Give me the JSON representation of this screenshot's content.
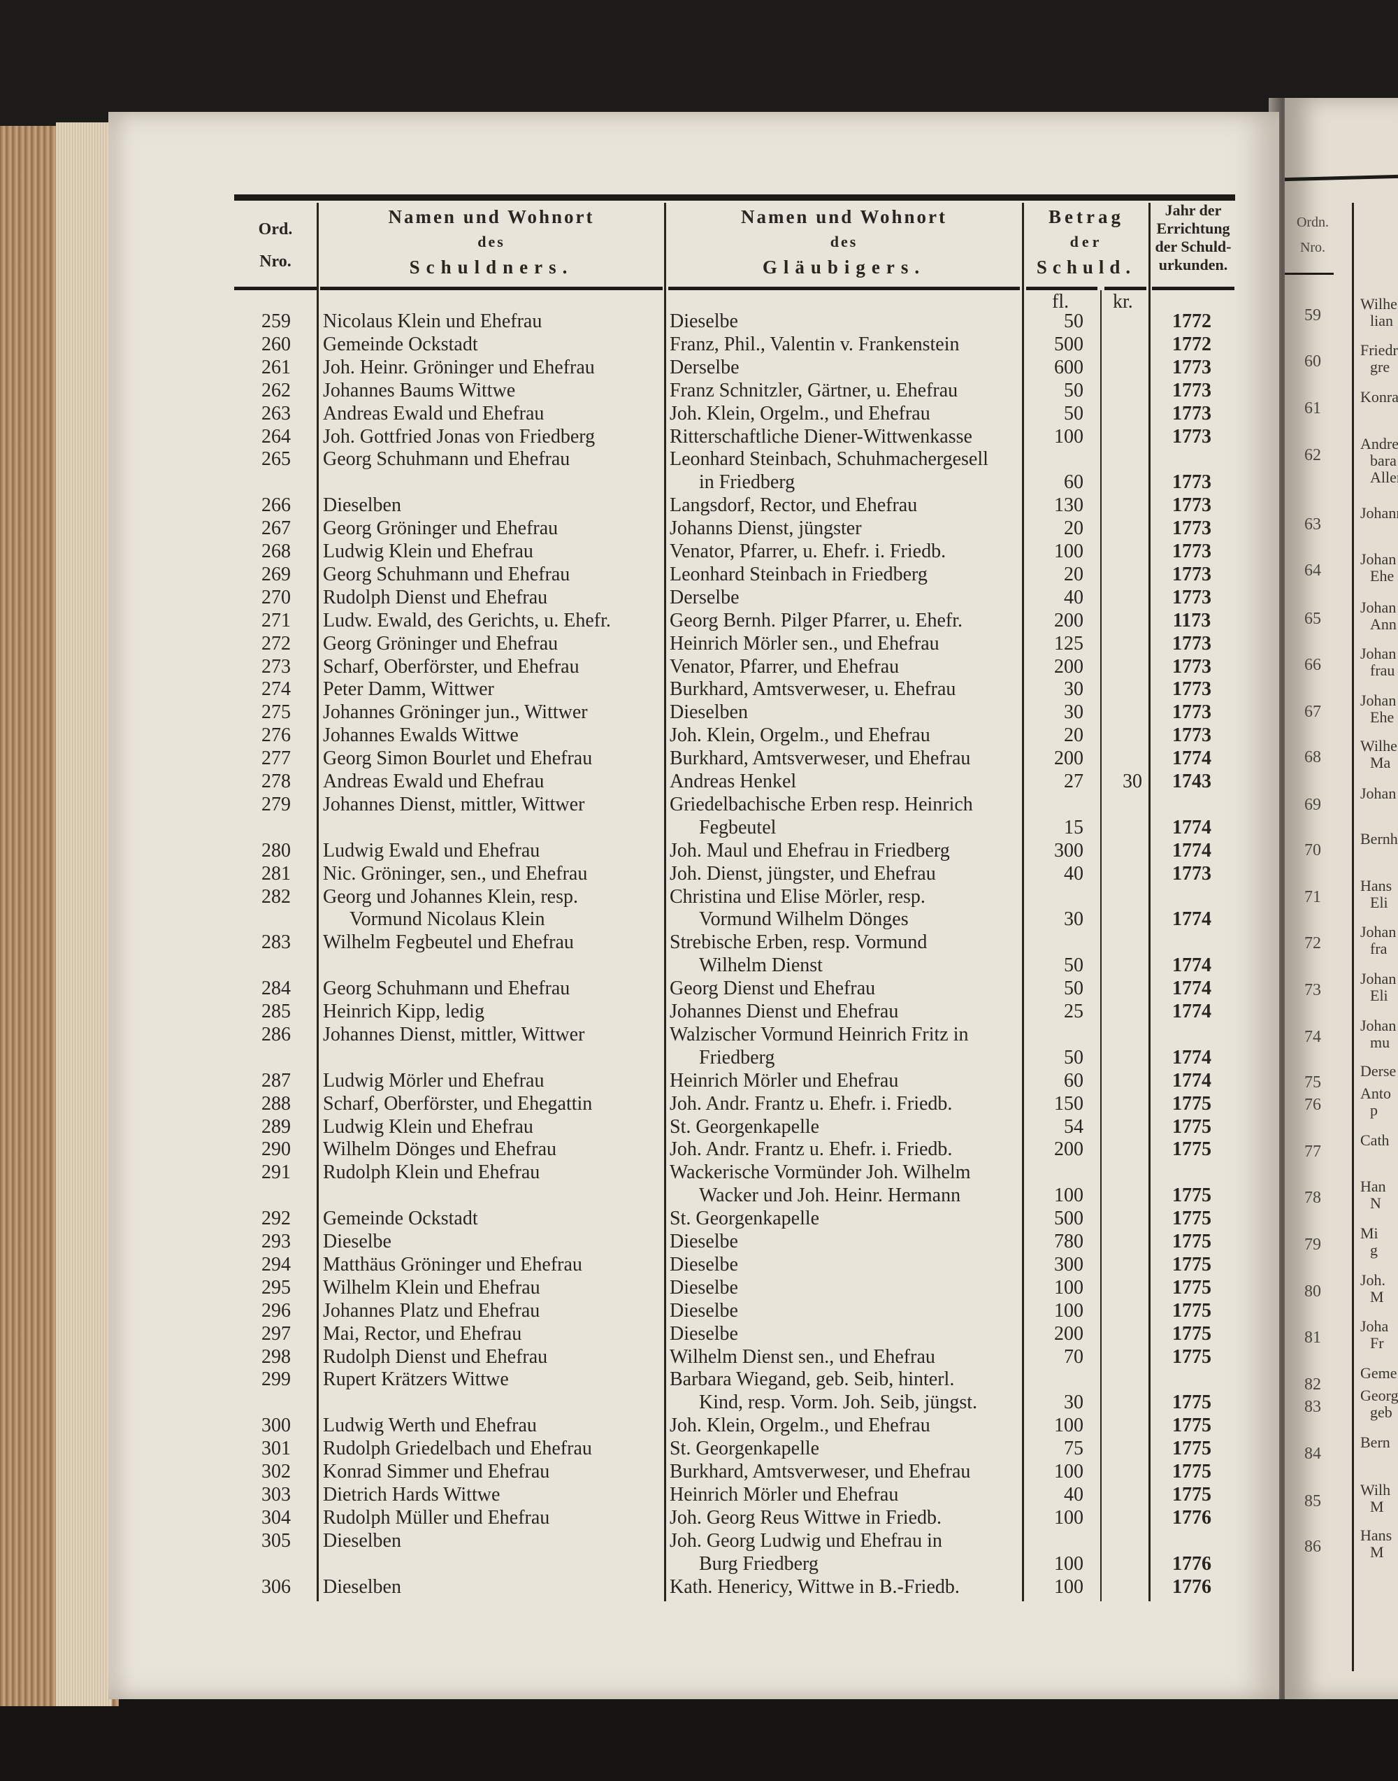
{
  "header": {
    "ord": [
      "Ord.",
      "Nro."
    ],
    "debtor": [
      "Namen und Wohnort",
      "des",
      "Schuldners."
    ],
    "creditor": [
      "Namen und Wohnort",
      "des",
      "Gläubigers."
    ],
    "amount": [
      "Betrag",
      "der",
      "Schuld."
    ],
    "year": [
      "Jahr der",
      "Errichtung",
      "der Schuld-",
      "urkunden."
    ],
    "unit_fl": "fl.",
    "unit_kr": "kr."
  },
  "rows": [
    {
      "nr": "259",
      "debtor": [
        "Nicolaus Klein und Ehefrau"
      ],
      "creditor": [
        "Dieselbe"
      ],
      "fl": "50",
      "kr": "",
      "year": "1772"
    },
    {
      "nr": "260",
      "debtor": [
        "Gemeinde Ockstadt"
      ],
      "creditor": [
        "Franz, Phil., Valentin v. Frankenstein"
      ],
      "fl": "500",
      "kr": "",
      "year": "1772"
    },
    {
      "nr": "261",
      "debtor": [
        "Joh. Heinr. Gröninger und Ehefrau"
      ],
      "creditor": [
        "Derselbe"
      ],
      "fl": "600",
      "kr": "",
      "year": "1773"
    },
    {
      "nr": "262",
      "debtor": [
        "Johannes Baums Wittwe"
      ],
      "creditor": [
        "Franz Schnitzler, Gärtner, u. Ehefrau"
      ],
      "fl": "50",
      "kr": "",
      "year": "1773"
    },
    {
      "nr": "263",
      "debtor": [
        "Andreas Ewald und Ehefrau"
      ],
      "creditor": [
        "Joh. Klein, Orgelm., und Ehefrau"
      ],
      "fl": "50",
      "kr": "",
      "year": "1773"
    },
    {
      "nr": "264",
      "debtor": [
        "Joh. Gottfried Jonas von Friedberg"
      ],
      "creditor": [
        "Ritterschaftliche Diener-Wittwenkasse"
      ],
      "fl": "100",
      "kr": "",
      "year": "1773"
    },
    {
      "nr": "265",
      "debtor": [
        "Georg Schuhmann und Ehefrau"
      ],
      "creditor": [
        "Leonhard Steinbach, Schuhmachergesell",
        "in Friedberg"
      ],
      "fl": "60",
      "kr": "",
      "year": "1773"
    },
    {
      "nr": "266",
      "debtor": [
        "Dieselben"
      ],
      "creditor": [
        "Langsdorf, Rector, und Ehefrau"
      ],
      "fl": "130",
      "kr": "",
      "year": "1773"
    },
    {
      "nr": "267",
      "debtor": [
        "Georg Gröninger und Ehefrau"
      ],
      "creditor": [
        "Johanns Dienst, jüngster"
      ],
      "fl": "20",
      "kr": "",
      "year": "1773"
    },
    {
      "nr": "268",
      "debtor": [
        "Ludwig Klein und Ehefrau"
      ],
      "creditor": [
        "Venator, Pfarrer, u. Ehefr. i. Friedb."
      ],
      "fl": "100",
      "kr": "",
      "year": "1773"
    },
    {
      "nr": "269",
      "debtor": [
        "Georg Schuhmann und Ehefrau"
      ],
      "creditor": [
        "Leonhard Steinbach in Friedberg"
      ],
      "fl": "20",
      "kr": "",
      "year": "1773"
    },
    {
      "nr": "270",
      "debtor": [
        "Rudolph Dienst und Ehefrau"
      ],
      "creditor": [
        "Derselbe"
      ],
      "fl": "40",
      "kr": "",
      "year": "1773"
    },
    {
      "nr": "271",
      "debtor": [
        "Ludw. Ewald, des Gerichts, u. Ehefr."
      ],
      "creditor": [
        "Georg Bernh. Pilger Pfarrer, u. Ehefr."
      ],
      "fl": "200",
      "kr": "",
      "year": "1173"
    },
    {
      "nr": "272",
      "debtor": [
        "Georg Gröninger und Ehefrau"
      ],
      "creditor": [
        "Heinrich Mörler sen., und Ehefrau"
      ],
      "fl": "125",
      "kr": "",
      "year": "1773"
    },
    {
      "nr": "273",
      "debtor": [
        "Scharf, Oberförster, und Ehefrau"
      ],
      "creditor": [
        "Venator, Pfarrer, und Ehefrau"
      ],
      "fl": "200",
      "kr": "",
      "year": "1773"
    },
    {
      "nr": "274",
      "debtor": [
        "Peter Damm, Wittwer"
      ],
      "creditor": [
        "Burkhard, Amtsverweser, u. Ehefrau"
      ],
      "fl": "30",
      "kr": "",
      "year": "1773"
    },
    {
      "nr": "275",
      "debtor": [
        "Johannes Gröninger jun., Wittwer"
      ],
      "creditor": [
        "Dieselben"
      ],
      "fl": "30",
      "kr": "",
      "year": "1773"
    },
    {
      "nr": "276",
      "debtor": [
        "Johannes Ewalds Wittwe"
      ],
      "creditor": [
        "Joh. Klein, Orgelm., und Ehefrau"
      ],
      "fl": "20",
      "kr": "",
      "year": "1773"
    },
    {
      "nr": "277",
      "debtor": [
        "Georg Simon Bourlet und Ehefrau"
      ],
      "creditor": [
        "Burkhard, Amtsverweser, und Ehefrau"
      ],
      "fl": "200",
      "kr": "",
      "year": "1774"
    },
    {
      "nr": "278",
      "debtor": [
        "Andreas Ewald und Ehefrau"
      ],
      "creditor": [
        "Andreas Henkel"
      ],
      "fl": "27",
      "kr": "30",
      "year": "1743"
    },
    {
      "nr": "279",
      "debtor": [
        "Johannes Dienst, mittler, Wittwer"
      ],
      "creditor": [
        "Griedelbachische Erben resp. Heinrich",
        "Fegbeutel"
      ],
      "fl": "15",
      "kr": "",
      "year": "1774"
    },
    {
      "nr": "280",
      "debtor": [
        "Ludwig Ewald und Ehefrau"
      ],
      "creditor": [
        "Joh. Maul und Ehefrau in Friedberg"
      ],
      "fl": "300",
      "kr": "",
      "year": "1774"
    },
    {
      "nr": "281",
      "debtor": [
        "Nic. Gröninger, sen., und Ehefrau"
      ],
      "creditor": [
        "Joh. Dienst, jüngster, und Ehefrau"
      ],
      "fl": "40",
      "kr": "",
      "year": "1773"
    },
    {
      "nr": "282",
      "debtor": [
        "Georg und Johannes Klein, resp.",
        "Vormund Nicolaus Klein"
      ],
      "creditor": [
        "Christina und Elise Mörler, resp.",
        "Vormund Wilhelm Dönges"
      ],
      "fl": "30",
      "kr": "",
      "year": "1774"
    },
    {
      "nr": "283",
      "debtor": [
        "Wilhelm Fegbeutel und Ehefrau"
      ],
      "creditor": [
        "Strebische Erben, resp. Vormund",
        "Wilhelm Dienst"
      ],
      "fl": "50",
      "kr": "",
      "year": "1774"
    },
    {
      "nr": "284",
      "debtor": [
        "Georg Schuhmann und Ehefrau"
      ],
      "creditor": [
        "Georg Dienst und Ehefrau"
      ],
      "fl": "50",
      "kr": "",
      "year": "1774"
    },
    {
      "nr": "285",
      "debtor": [
        "Heinrich Kipp, ledig"
      ],
      "creditor": [
        "Johannes Dienst und Ehefrau"
      ],
      "fl": "25",
      "kr": "",
      "year": "1774"
    },
    {
      "nr": "286",
      "debtor": [
        "Johannes Dienst, mittler, Wittwer"
      ],
      "creditor": [
        "Walzischer Vormund Heinrich Fritz in",
        "Friedberg"
      ],
      "fl": "50",
      "kr": "",
      "year": "1774"
    },
    {
      "nr": "287",
      "debtor": [
        "Ludwig Mörler und Ehefrau"
      ],
      "creditor": [
        "Heinrich Mörler und Ehefrau"
      ],
      "fl": "60",
      "kr": "",
      "year": "1774"
    },
    {
      "nr": "288",
      "debtor": [
        "Scharf, Oberförster, und Ehegattin"
      ],
      "creditor": [
        "Joh. Andr. Frantz u. Ehefr. i. Friedb."
      ],
      "fl": "150",
      "kr": "",
      "year": "1775"
    },
    {
      "nr": "289",
      "debtor": [
        "Ludwig Klein und Ehefrau"
      ],
      "creditor": [
        "St. Georgenkapelle"
      ],
      "fl": "54",
      "kr": "",
      "year": "1775"
    },
    {
      "nr": "290",
      "debtor": [
        "Wilhelm Dönges und Ehefrau"
      ],
      "creditor": [
        "Joh. Andr. Frantz u. Ehefr. i. Friedb."
      ],
      "fl": "200",
      "kr": "",
      "year": "1775"
    },
    {
      "nr": "291",
      "debtor": [
        "Rudolph Klein und Ehefrau"
      ],
      "creditor": [
        "Wackerische Vormünder Joh. Wilhelm",
        "Wacker und Joh. Heinr. Hermann"
      ],
      "fl": "100",
      "kr": "",
      "year": "1775"
    },
    {
      "nr": "292",
      "debtor": [
        "Gemeinde Ockstadt"
      ],
      "creditor": [
        "St. Georgenkapelle"
      ],
      "fl": "500",
      "kr": "",
      "year": "1775"
    },
    {
      "nr": "293",
      "debtor": [
        "Dieselbe"
      ],
      "creditor": [
        "Dieselbe"
      ],
      "fl": "780",
      "kr": "",
      "year": "1775"
    },
    {
      "nr": "294",
      "debtor": [
        "Matthäus Gröninger und Ehefrau"
      ],
      "creditor": [
        "Dieselbe"
      ],
      "fl": "300",
      "kr": "",
      "year": "1775"
    },
    {
      "nr": "295",
      "debtor": [
        "Wilhelm Klein und Ehefrau"
      ],
      "creditor": [
        "Dieselbe"
      ],
      "fl": "100",
      "kr": "",
      "year": "1775"
    },
    {
      "nr": "296",
      "debtor": [
        "Johannes Platz und Ehefrau"
      ],
      "creditor": [
        "Dieselbe"
      ],
      "fl": "100",
      "kr": "",
      "year": "1775"
    },
    {
      "nr": "297",
      "debtor": [
        "Mai, Rector, und Ehefrau"
      ],
      "creditor": [
        "Dieselbe"
      ],
      "fl": "200",
      "kr": "",
      "year": "1775"
    },
    {
      "nr": "298",
      "debtor": [
        "Rudolph Dienst und Ehefrau"
      ],
      "creditor": [
        "Wilhelm Dienst sen., und Ehefrau"
      ],
      "fl": "70",
      "kr": "",
      "year": "1775"
    },
    {
      "nr": "299",
      "debtor": [
        "Rupert Krätzers Wittwe"
      ],
      "creditor": [
        "Barbara Wiegand, geb. Seib, hinterl.",
        "Kind, resp. Vorm. Joh. Seib, jüngst."
      ],
      "fl": "30",
      "kr": "",
      "year": "1775"
    },
    {
      "nr": "300",
      "debtor": [
        "Ludwig Werth und Ehefrau"
      ],
      "creditor": [
        "Joh. Klein, Orgelm., und Ehefrau"
      ],
      "fl": "100",
      "kr": "",
      "year": "1775"
    },
    {
      "nr": "301",
      "debtor": [
        "Rudolph Griedelbach und Ehefrau"
      ],
      "creditor": [
        "St. Georgenkapelle"
      ],
      "fl": "75",
      "kr": "",
      "year": "1775"
    },
    {
      "nr": "302",
      "debtor": [
        "Konrad Simmer und Ehefrau"
      ],
      "creditor": [
        "Burkhard, Amtsverweser, und Ehefrau"
      ],
      "fl": "100",
      "kr": "",
      "year": "1775"
    },
    {
      "nr": "303",
      "debtor": [
        "Dietrich Hards Wittwe"
      ],
      "creditor": [
        "Heinrich Mörler und Ehefrau"
      ],
      "fl": "40",
      "kr": "",
      "year": "1775"
    },
    {
      "nr": "304",
      "debtor": [
        "Rudolph Müller und Ehefrau"
      ],
      "creditor": [
        "Joh. Georg Reus Wittwe in Friedb."
      ],
      "fl": "100",
      "kr": "",
      "year": "1776"
    },
    {
      "nr": "305",
      "debtor": [
        "Dieselben"
      ],
      "creditor": [
        "Joh. Georg Ludwig und Ehefrau in",
        "Burg Friedberg"
      ],
      "fl": "100",
      "kr": "",
      "year": "1776"
    },
    {
      "nr": "306",
      "debtor": [
        "Dieselben"
      ],
      "creditor": [
        "Kath. Henericy, Wittwe in B.-Friedb."
      ],
      "fl": "100",
      "kr": "",
      "year": "1776"
    }
  ],
  "right_page": {
    "header": [
      "Ordn.",
      "Nro."
    ],
    "entries": [
      {
        "nr": "59",
        "frag": [
          "Wilhe",
          "lian"
        ]
      },
      {
        "nr": "60",
        "frag": [
          "Friedr",
          "gre"
        ]
      },
      {
        "nr": "61",
        "frag": [
          "Konra"
        ]
      },
      {
        "nr": "62",
        "frag": [
          "Andrea",
          "bara",
          "Aller"
        ]
      },
      {
        "nr": "63",
        "frag": [
          "Johann"
        ]
      },
      {
        "nr": "64",
        "frag": [
          "Johan",
          "Ehe"
        ]
      },
      {
        "nr": "65",
        "frag": [
          "Johan",
          "Ann"
        ]
      },
      {
        "nr": "66",
        "frag": [
          "Johan",
          "frau"
        ]
      },
      {
        "nr": "67",
        "frag": [
          "Johan",
          "Ehe"
        ]
      },
      {
        "nr": "68",
        "frag": [
          "Wilhe",
          "Ma"
        ]
      },
      {
        "nr": "69",
        "frag": [
          "Johan"
        ]
      },
      {
        "nr": "70",
        "frag": [
          "Bernh"
        ]
      },
      {
        "nr": "71",
        "frag": [
          "Hans",
          "Eli"
        ]
      },
      {
        "nr": "72",
        "frag": [
          "Johan",
          "fra"
        ]
      },
      {
        "nr": "73",
        "frag": [
          "Johan",
          "Eli"
        ]
      },
      {
        "nr": "74",
        "frag": [
          "Johan",
          "mu"
        ]
      },
      {
        "nr": "75",
        "frag": [
          "Derse"
        ]
      },
      {
        "nr": "76",
        "frag": [
          "Anto",
          "p"
        ]
      },
      {
        "nr": "77",
        "frag": [
          "Cath"
        ]
      },
      {
        "nr": "78",
        "frag": [
          "Han",
          "N"
        ]
      },
      {
        "nr": "79",
        "frag": [
          "Mi",
          "g"
        ]
      },
      {
        "nr": "80",
        "frag": [
          "Joh.",
          "M"
        ]
      },
      {
        "nr": "81",
        "frag": [
          "Joha",
          "Fr"
        ]
      },
      {
        "nr": "82",
        "frag": [
          "Geme"
        ]
      },
      {
        "nr": "83",
        "frag": [
          "Georg",
          "geb"
        ]
      },
      {
        "nr": "84",
        "frag": [
          "Bern"
        ]
      },
      {
        "nr": "85",
        "frag": [
          "Wilh",
          "M"
        ]
      },
      {
        "nr": "86",
        "frag": [
          "Hans",
          "M"
        ]
      }
    ]
  }
}
